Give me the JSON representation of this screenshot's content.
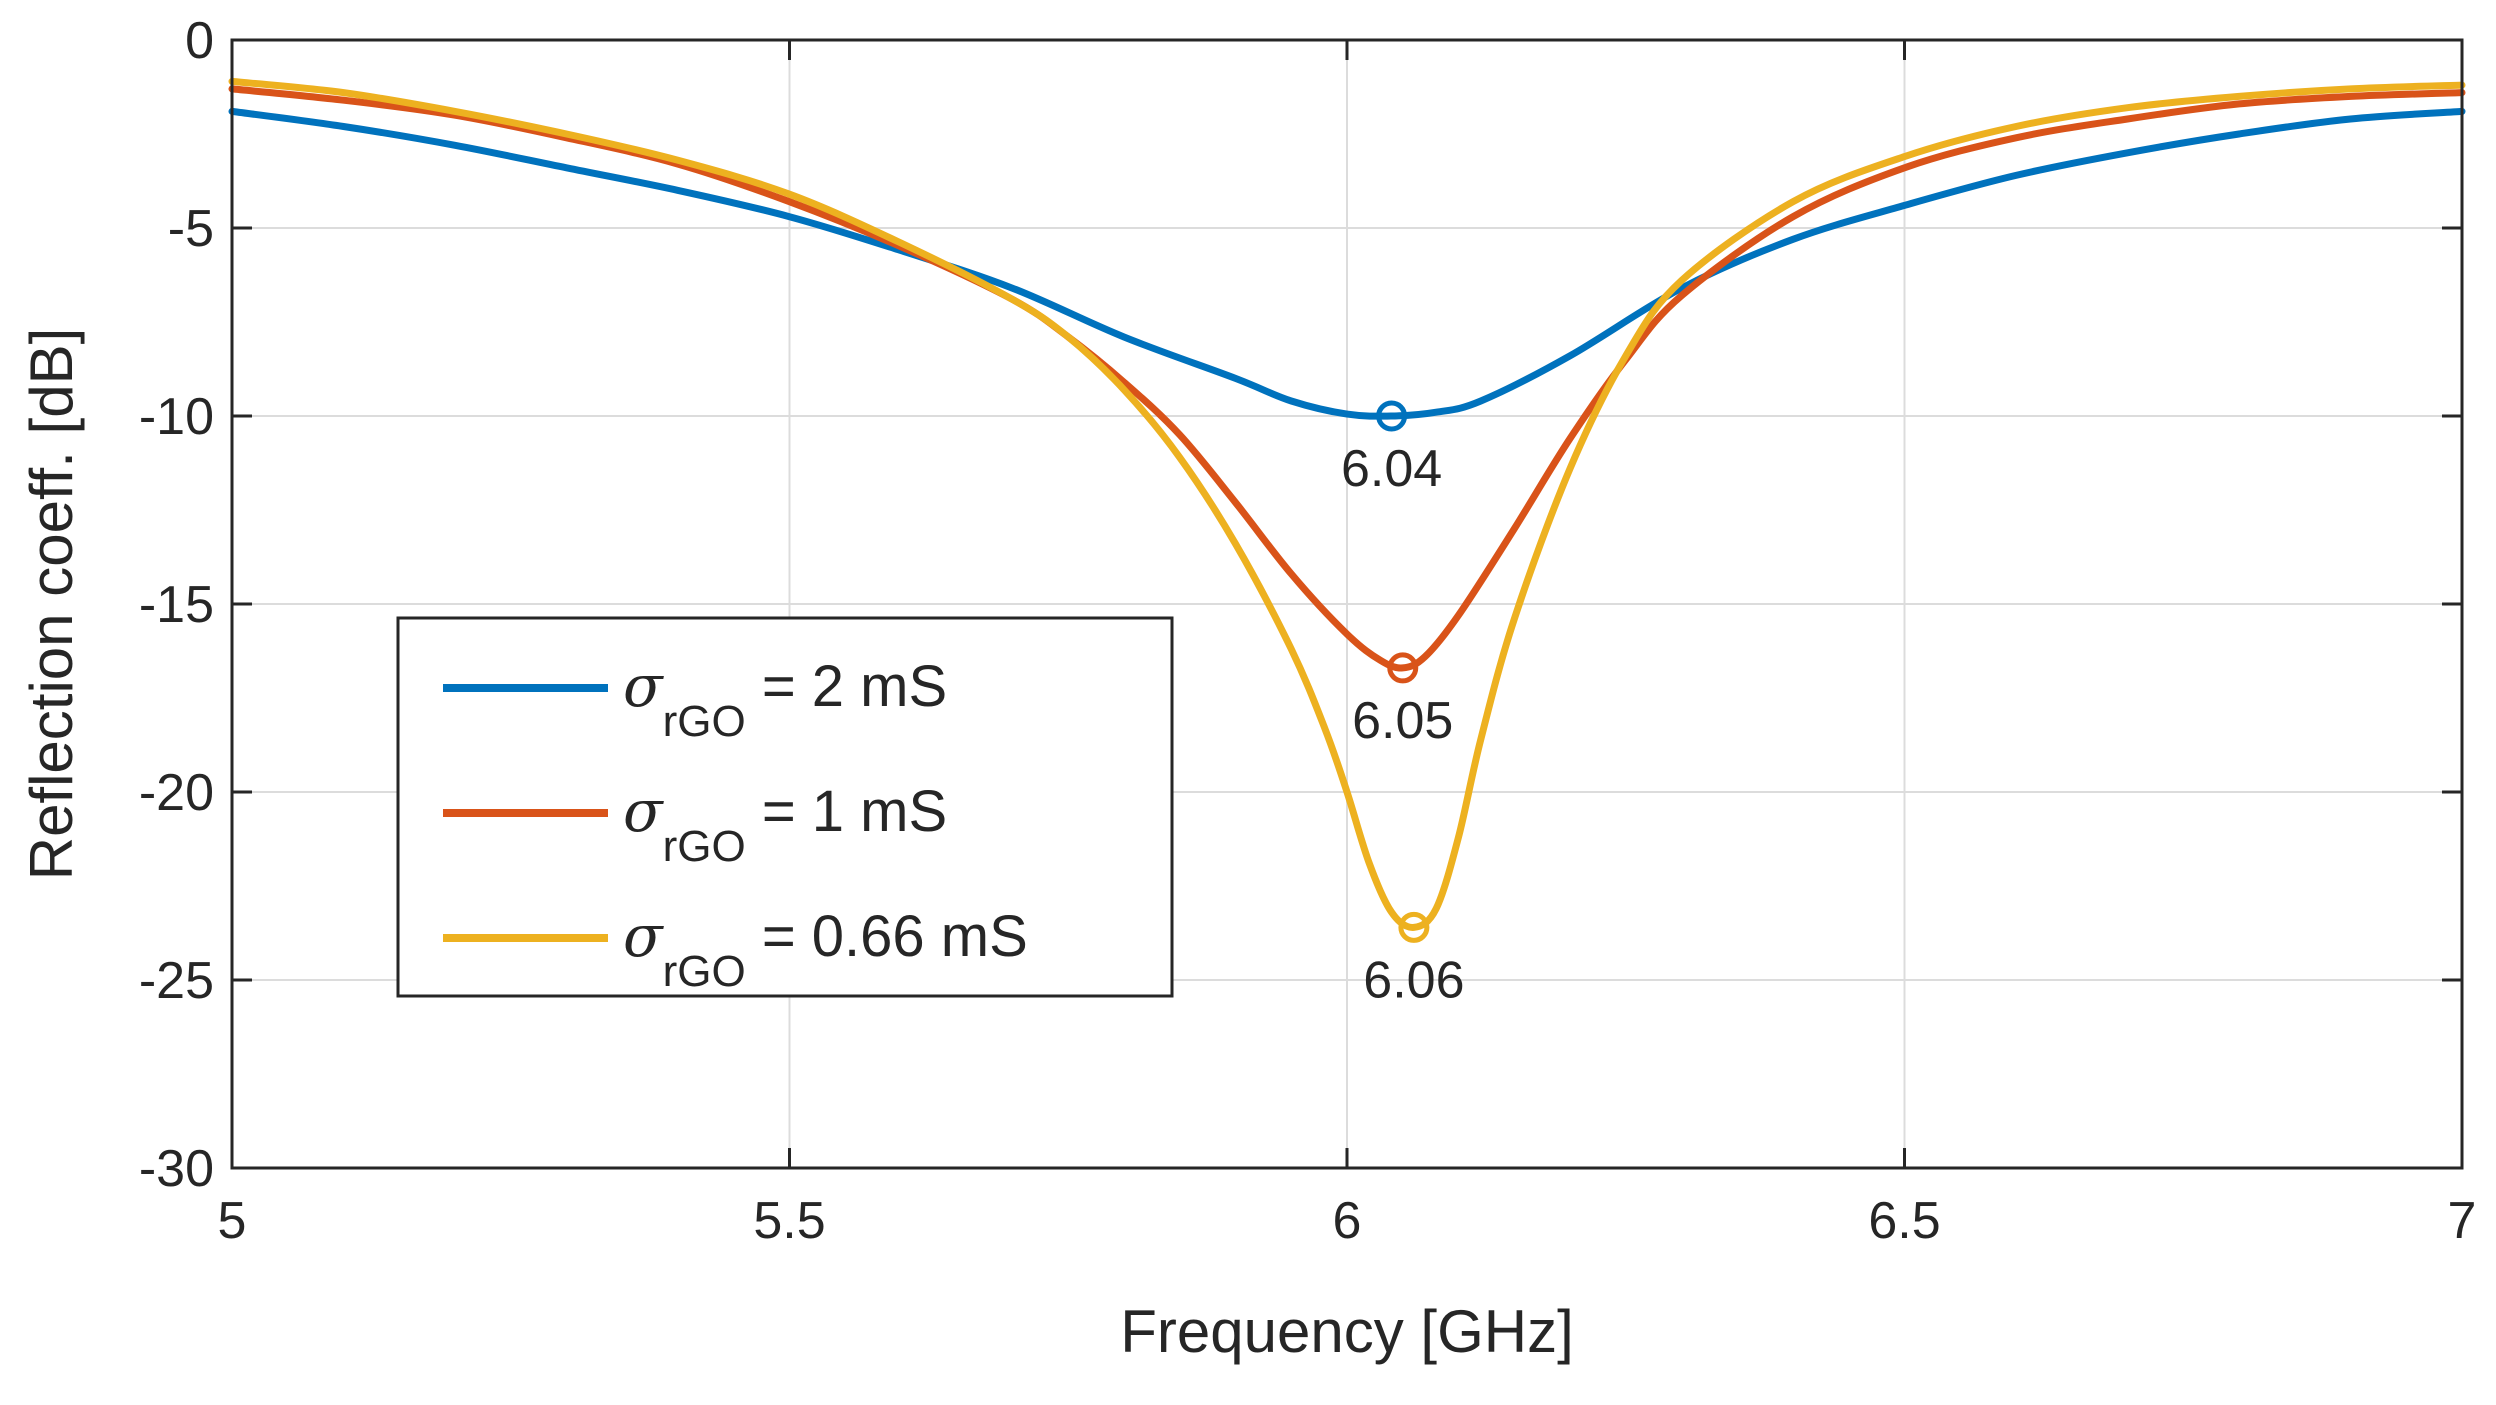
{
  "chart_data": {
    "type": "line",
    "title": "",
    "xlabel": "Frequency [GHz]",
    "ylabel": "Reflection coeff. [dB]",
    "xlim": [
      5,
      7
    ],
    "ylim": [
      -30,
      0
    ],
    "xticks": [
      5,
      5.5,
      6,
      6.5,
      7
    ],
    "xtick_labels": [
      "5",
      "5.5",
      "6",
      "6.5",
      "7"
    ],
    "yticks": [
      0,
      -5,
      -10,
      -15,
      -20,
      -25,
      -30
    ],
    "ytick_labels": [
      "0",
      "-5",
      "-10",
      "-15",
      "-20",
      "-25",
      "-30"
    ],
    "grid": true,
    "legend_position": "lower-left",
    "series": [
      {
        "name": "σrGO = 2 mS",
        "legend_symbol": "σ",
        "legend_subscript": "rGO",
        "legend_value": " = 2 mS",
        "color": "#0072BD",
        "x": [
          5.0,
          5.1,
          5.2,
          5.3,
          5.4,
          5.5,
          5.6,
          5.7,
          5.8,
          5.9,
          5.95,
          6.0,
          6.04,
          6.08,
          6.12,
          6.2,
          6.3,
          6.4,
          6.5,
          6.6,
          6.7,
          6.8,
          6.9,
          7.0
        ],
        "y": [
          -1.9,
          -2.3,
          -2.8,
          -3.4,
          -4.0,
          -4.7,
          -5.6,
          -6.6,
          -7.9,
          -9.0,
          -9.6,
          -9.95,
          -10.0,
          -9.9,
          -9.6,
          -8.4,
          -6.6,
          -5.3,
          -4.4,
          -3.6,
          -3.0,
          -2.5,
          -2.1,
          -1.9
        ],
        "marker": {
          "x": 6.04,
          "y": -10.0,
          "label": "6.04"
        }
      },
      {
        "name": "σrGO = 1 mS",
        "legend_symbol": "σ",
        "legend_subscript": "rGO",
        "legend_value": " = 1 mS",
        "color": "#D95319",
        "x": [
          5.0,
          5.1,
          5.2,
          5.3,
          5.4,
          5.5,
          5.6,
          5.7,
          5.75,
          5.8,
          5.85,
          5.9,
          5.95,
          6.0,
          6.03,
          6.05,
          6.07,
          6.1,
          6.15,
          6.2,
          6.25,
          6.3,
          6.4,
          6.5,
          6.6,
          6.7,
          6.8,
          6.9,
          7.0
        ],
        "y": [
          -1.3,
          -1.6,
          -2.0,
          -2.6,
          -3.3,
          -4.3,
          -5.5,
          -6.9,
          -7.9,
          -9.1,
          -10.5,
          -12.3,
          -14.2,
          -15.8,
          -16.5,
          -16.7,
          -16.4,
          -15.3,
          -13.0,
          -10.6,
          -8.5,
          -6.8,
          -4.7,
          -3.4,
          -2.6,
          -2.1,
          -1.7,
          -1.5,
          -1.4
        ],
        "marker": {
          "x": 6.05,
          "y": -16.7,
          "label": "6.05"
        }
      },
      {
        "name": "σrGO = 0.66 mS",
        "legend_symbol": "σ",
        "legend_subscript": "rGO",
        "legend_value": " = 0.66 mS",
        "color": "#EDB120",
        "x": [
          5.0,
          5.1,
          5.2,
          5.3,
          5.4,
          5.5,
          5.6,
          5.7,
          5.75,
          5.8,
          5.85,
          5.9,
          5.95,
          5.98,
          6.0,
          6.02,
          6.04,
          6.06,
          6.08,
          6.1,
          6.12,
          6.15,
          6.2,
          6.25,
          6.3,
          6.4,
          6.5,
          6.6,
          6.7,
          6.8,
          6.9,
          7.0
        ],
        "y": [
          -1.1,
          -1.4,
          -1.9,
          -2.5,
          -3.2,
          -4.1,
          -5.4,
          -6.9,
          -7.9,
          -9.3,
          -11.1,
          -13.4,
          -16.2,
          -18.3,
          -20.0,
          -21.9,
          -23.2,
          -23.6,
          -23.1,
          -21.2,
          -18.6,
          -15.4,
          -11.4,
          -8.4,
          -6.4,
          -4.3,
          -3.1,
          -2.3,
          -1.8,
          -1.5,
          -1.3,
          -1.2
        ],
        "marker": {
          "x": 6.06,
          "y": -23.6,
          "label": "6.06"
        }
      }
    ]
  }
}
